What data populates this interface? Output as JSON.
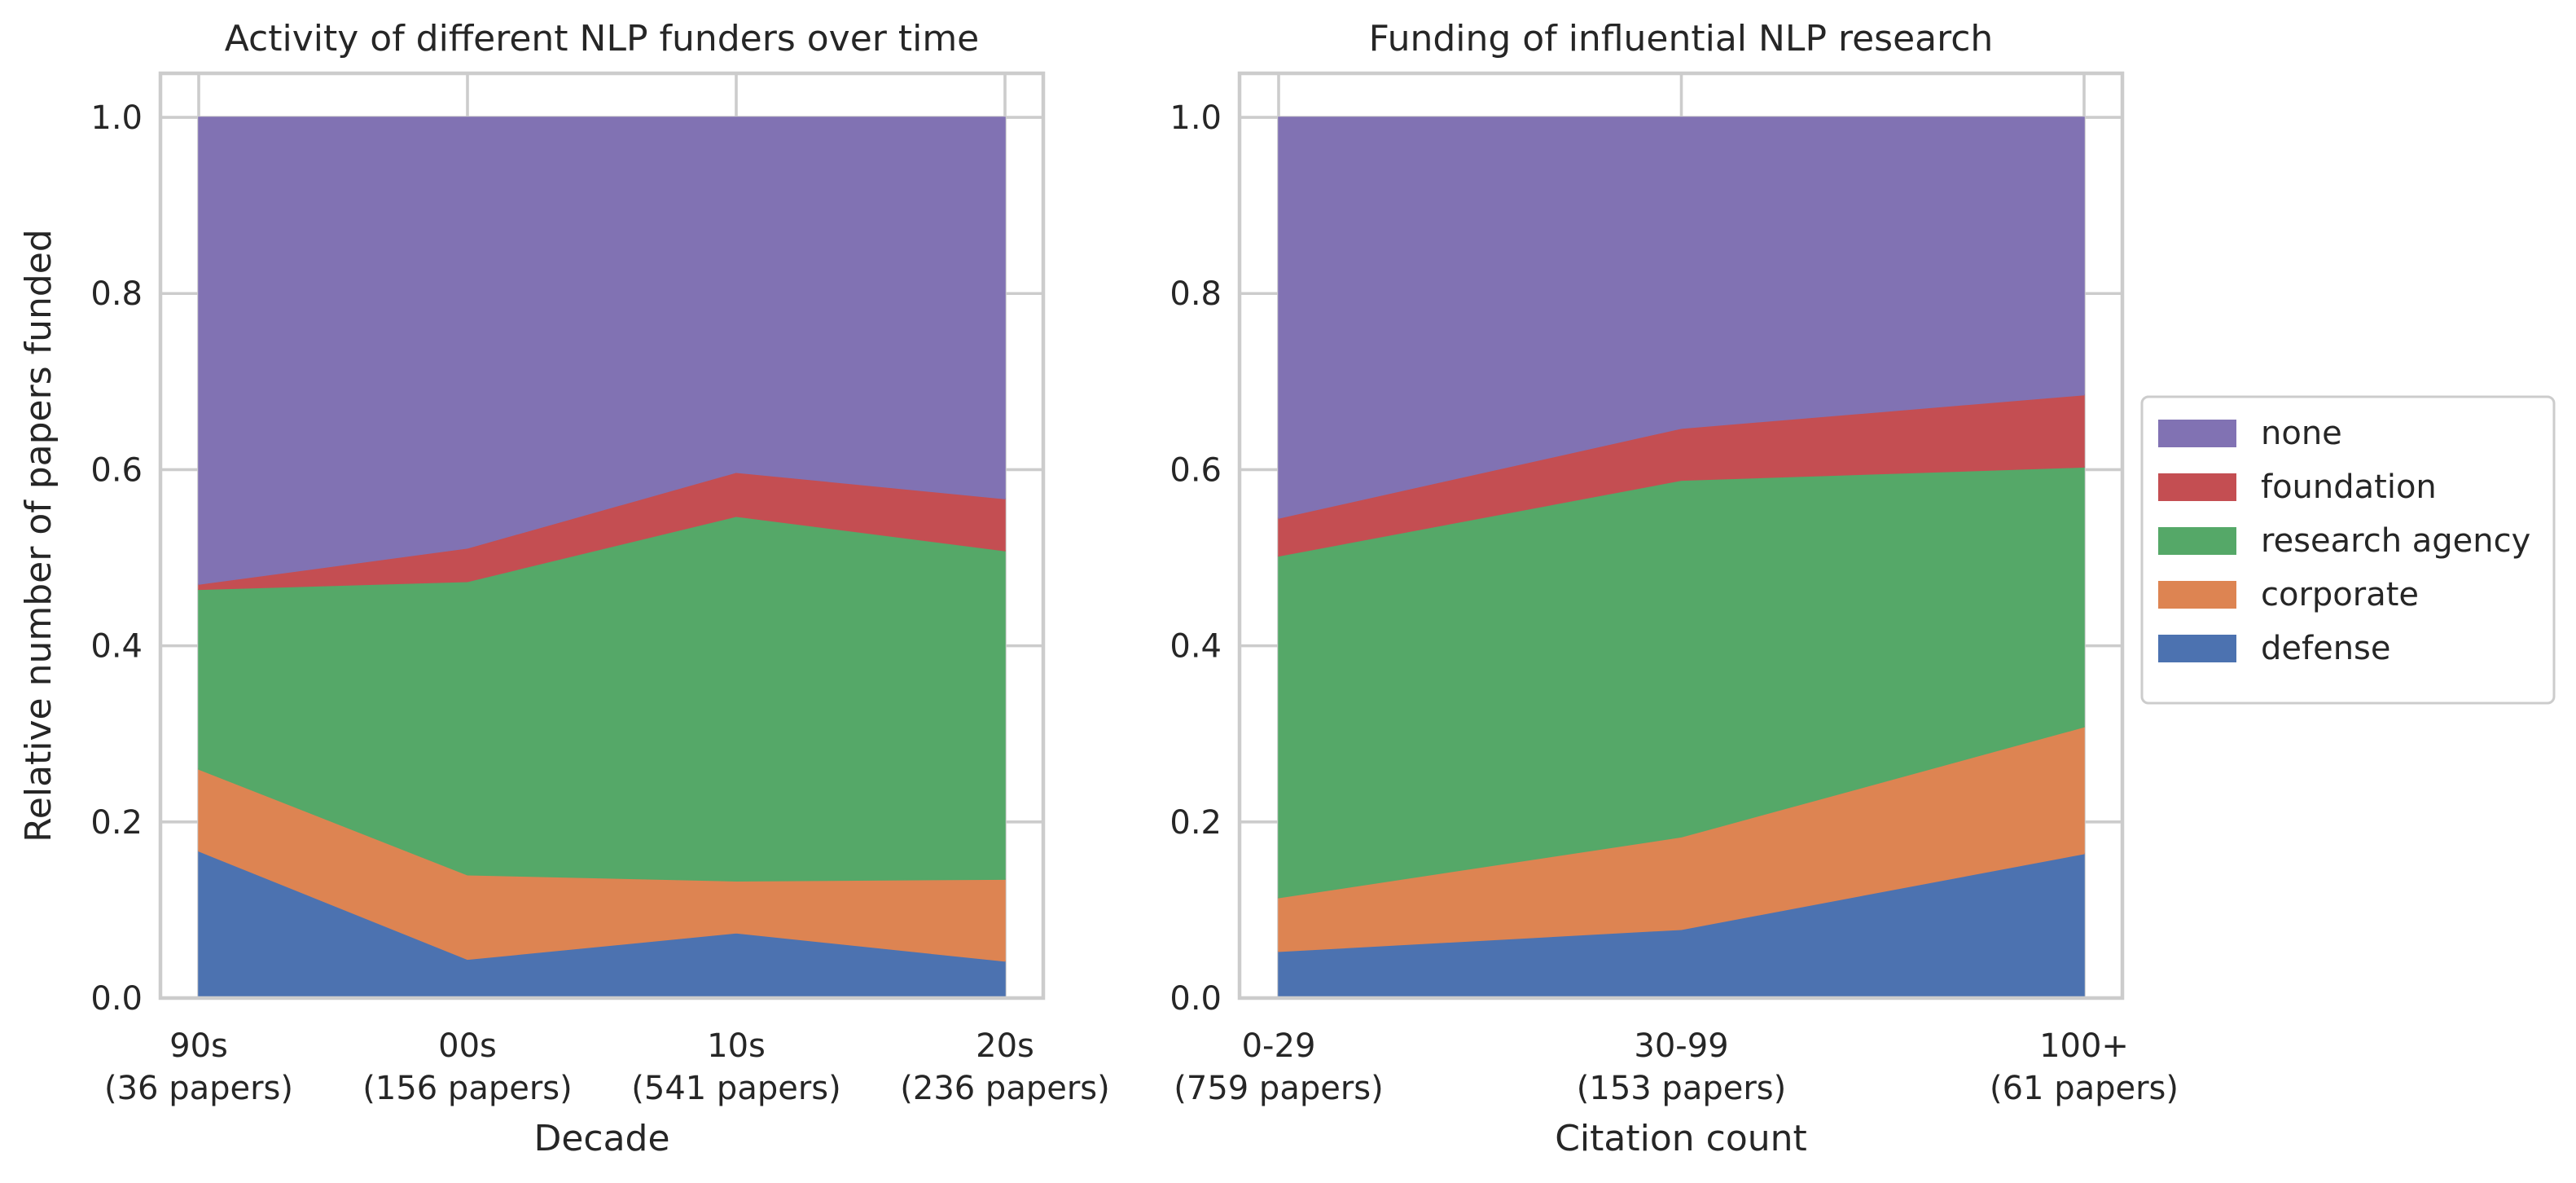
{
  "chart_data": [
    {
      "type": "area",
      "stacked": true,
      "title": "Activity of different NLP funders over time",
      "xlabel": "Decade",
      "ylabel": "Relative number of papers funded",
      "ylim": [
        0,
        1.05
      ],
      "yticks": [
        "0.0",
        "0.2",
        "0.4",
        "0.6",
        "0.8",
        "1.0"
      ],
      "categories": [
        "90s\n(36 papers)",
        "00s\n(156 papers)",
        "10s\n(541 papers)",
        "20s\n(236 papers)"
      ],
      "grid": true,
      "series": [
        {
          "name": "defense",
          "color": "#4c72b0",
          "values": [
            0.167,
            0.044,
            0.074,
            0.042
          ]
        },
        {
          "name": "corporate",
          "color": "#dd8452",
          "values": [
            0.093,
            0.096,
            0.059,
            0.093
          ]
        },
        {
          "name": "research agency",
          "color": "#55a868",
          "values": [
            0.204,
            0.333,
            0.414,
            0.373
          ]
        },
        {
          "name": "foundation",
          "color": "#c44e52",
          "values": [
            0.006,
            0.038,
            0.05,
            0.059
          ]
        },
        {
          "name": "none",
          "color": "#8172b3",
          "values": [
            0.53,
            0.489,
            0.403,
            0.433
          ]
        }
      ]
    },
    {
      "type": "area",
      "stacked": true,
      "title": "Funding of influential NLP research",
      "xlabel": "Citation count",
      "ylabel": "",
      "ylim": [
        0,
        1.05
      ],
      "yticks": [
        "0.0",
        "0.2",
        "0.4",
        "0.6",
        "0.8",
        "1.0"
      ],
      "categories": [
        "0-29\n(759 papers)",
        "30-99\n(153 papers)",
        "100+\n(61 papers)"
      ],
      "grid": true,
      "series": [
        {
          "name": "defense",
          "color": "#4c72b0",
          "values": [
            0.053,
            0.078,
            0.164
          ]
        },
        {
          "name": "corporate",
          "color": "#dd8452",
          "values": [
            0.061,
            0.105,
            0.144
          ]
        },
        {
          "name": "research agency",
          "color": "#55a868",
          "values": [
            0.388,
            0.405,
            0.295
          ]
        },
        {
          "name": "foundation",
          "color": "#c44e52",
          "values": [
            0.043,
            0.059,
            0.082
          ]
        },
        {
          "name": "none",
          "color": "#8172b3",
          "values": [
            0.455,
            0.353,
            0.315
          ]
        }
      ]
    }
  ],
  "legend": {
    "placement": "center-right",
    "items": [
      {
        "label": "none",
        "color": "#8172b3"
      },
      {
        "label": "foundation",
        "color": "#c44e52"
      },
      {
        "label": "research agency",
        "color": "#55a868"
      },
      {
        "label": "corporate",
        "color": "#dd8452"
      },
      {
        "label": "defense",
        "color": "#4c72b0"
      }
    ]
  }
}
